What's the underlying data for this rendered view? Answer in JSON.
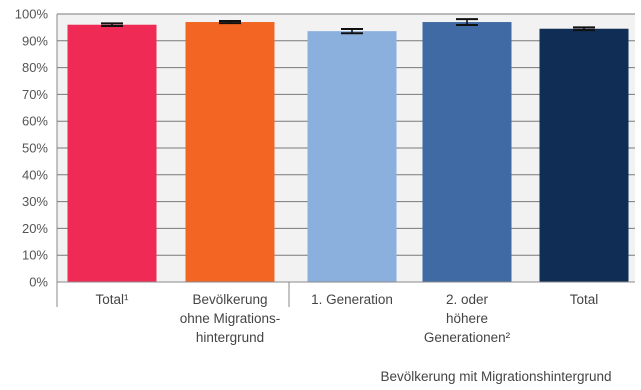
{
  "chart_data": {
    "type": "bar",
    "ylim": [
      0,
      100
    ],
    "y_ticks": [
      "0%",
      "10%",
      "20%",
      "30%",
      "40%",
      "50%",
      "60%",
      "70%",
      "80%",
      "90%",
      "100%"
    ],
    "y_tick_values": [
      0,
      10,
      20,
      30,
      40,
      50,
      60,
      70,
      80,
      90,
      100
    ],
    "grid": true,
    "categories": [
      {
        "lines": [
          "Total¹"
        ],
        "value": 96.0,
        "err": 0.5,
        "color": "#ee2a55"
      },
      {
        "lines": [
          "Bevölkerung",
          "ohne Migrations-",
          "hintergrund"
        ],
        "value": 97.0,
        "err": 0.4,
        "color": "#f26522"
      },
      {
        "lines": [
          "1. Generation"
        ],
        "value": 93.6,
        "err": 0.8,
        "color": "#8cb0dd"
      },
      {
        "lines": [
          "2. oder",
          "höhere",
          "Generationen²"
        ],
        "value": 97.0,
        "err": 1.1,
        "color": "#3f6aa3"
      },
      {
        "lines": [
          "Total"
        ],
        "value": 94.5,
        "err": 0.5,
        "color": "#0f2d55"
      }
    ],
    "group_label": "Bevölkerung mit Migrationshintergrund"
  }
}
